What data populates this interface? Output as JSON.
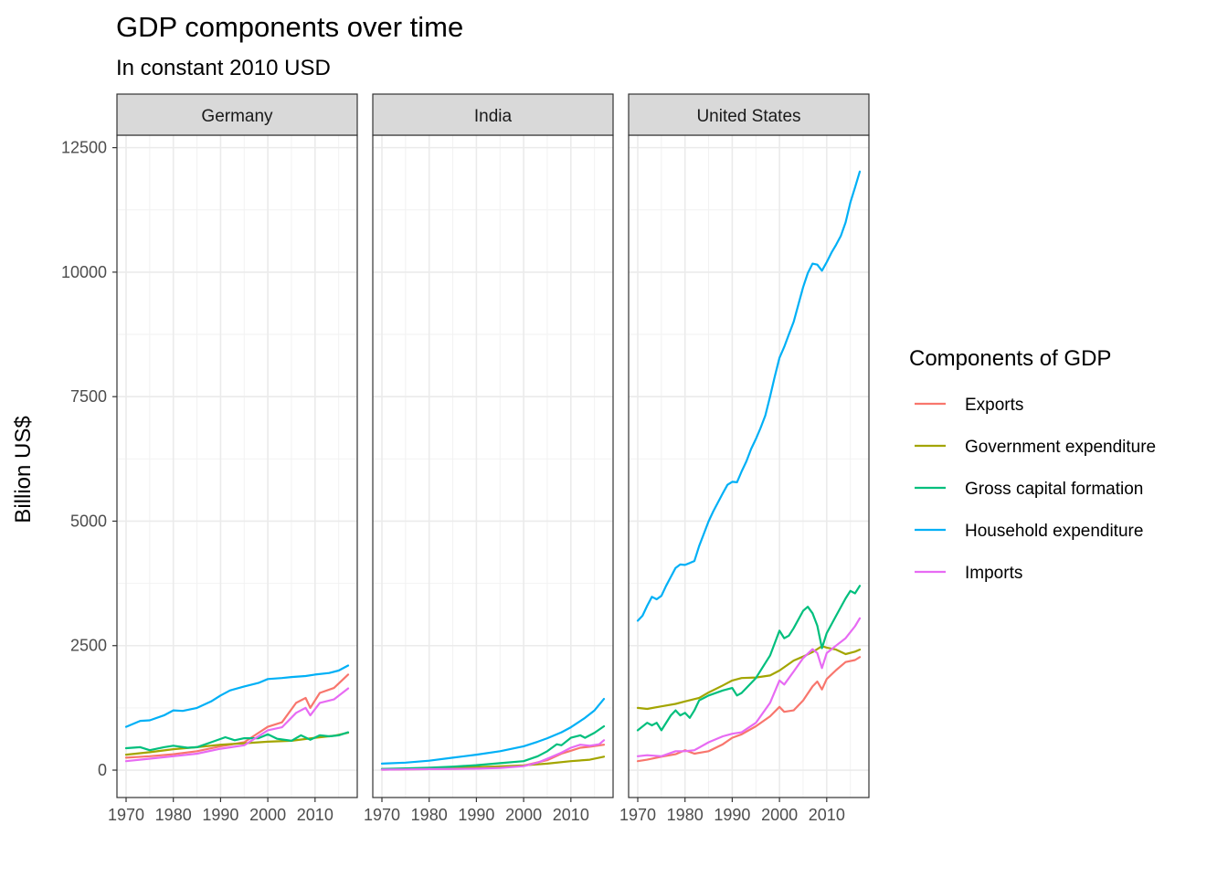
{
  "title": "GDP components over time",
  "subtitle": "In constant 2010 USD",
  "ylabel": "Billion US$",
  "legend_title": "Components of  GDP",
  "colors": {
    "Exports": "#F8766D",
    "Government expenditure": "#A3A500",
    "Gross capital formation": "#00BF7D",
    "Household expenditure": "#00B0F6",
    "Imports": "#E76BF3"
  },
  "chart_data": {
    "type": "line",
    "title": "GDP components over time",
    "subtitle": "In constant 2010 USD",
    "xlabel": "",
    "ylabel": "Billion US$",
    "xlim": [
      1970,
      2017
    ],
    "ylim": [
      -550,
      12750
    ],
    "x_ticks": [
      1970,
      1980,
      1990,
      2000,
      2010
    ],
    "y_ticks": [
      0,
      2500,
      5000,
      7500,
      10000,
      12500
    ],
    "grid": true,
    "legend": "right",
    "series_names": [
      "Exports",
      "Government expenditure",
      "Gross capital formation",
      "Household expenditure",
      "Imports"
    ],
    "panels": [
      {
        "name": "Germany",
        "series": [
          {
            "name": "Exports",
            "x": [
              1970,
              1975,
              1980,
              1985,
              1990,
              1995,
              2000,
              2003,
              2006,
              2008,
              2009,
              2011,
              2014,
              2017
            ],
            "values": [
              250,
              280,
              320,
              380,
              480,
              560,
              870,
              960,
              1350,
              1450,
              1250,
              1550,
              1650,
              1920
            ]
          },
          {
            "name": "Government expenditure",
            "x": [
              1970,
              1975,
              1980,
              1985,
              1990,
              1995,
              2000,
              2005,
              2010,
              2014,
              2017
            ],
            "values": [
              310,
              360,
              420,
              460,
              510,
              540,
              570,
              590,
              650,
              690,
              750
            ]
          },
          {
            "name": "Gross capital formation",
            "x": [
              1970,
              1973,
              1975,
              1978,
              1980,
              1983,
              1985,
              1988,
              1991,
              1993,
              1995,
              1998,
              2000,
              2002,
              2005,
              2007,
              2009,
              2011,
              2013,
              2015,
              2017
            ],
            "values": [
              440,
              460,
              400,
              460,
              490,
              450,
              460,
              560,
              660,
              600,
              640,
              640,
              720,
              630,
              590,
              700,
              610,
              700,
              680,
              700,
              760
            ]
          },
          {
            "name": "Household expenditure",
            "x": [
              1970,
              1973,
              1975,
              1978,
              1980,
              1982,
              1985,
              1988,
              1990,
              1992,
              1995,
              1998,
              2000,
              2003,
              2005,
              2008,
              2010,
              2013,
              2015,
              2017
            ],
            "values": [
              870,
              990,
              1000,
              1100,
              1200,
              1190,
              1250,
              1380,
              1500,
              1600,
              1680,
              1750,
              1830,
              1850,
              1870,
              1890,
              1920,
              1950,
              2000,
              2100
            ]
          },
          {
            "name": "Imports",
            "x": [
              1970,
              1975,
              1980,
              1985,
              1990,
              1995,
              2000,
              2003,
              2006,
              2008,
              2009,
              2011,
              2014,
              2017
            ],
            "values": [
              180,
              230,
              280,
              330,
              430,
              500,
              800,
              860,
              1150,
              1250,
              1100,
              1350,
              1420,
              1640
            ]
          }
        ]
      },
      {
        "name": "India",
        "series": [
          {
            "name": "Exports",
            "x": [
              1970,
              1975,
              1980,
              1985,
              1990,
              1995,
              2000,
              2005,
              2008,
              2010,
              2012,
              2014,
              2017
            ],
            "values": [
              10,
              15,
              20,
              25,
              35,
              55,
              90,
              200,
              330,
              390,
              450,
              470,
              510
            ]
          },
          {
            "name": "Government expenditure",
            "x": [
              1970,
              1975,
              1980,
              1985,
              1990,
              1995,
              2000,
              2005,
              2010,
              2014,
              2017
            ],
            "values": [
              20,
              28,
              35,
              45,
              60,
              75,
              95,
              130,
              180,
              210,
              270
            ]
          },
          {
            "name": "Gross capital formation",
            "x": [
              1970,
              1975,
              1980,
              1985,
              1990,
              1995,
              2000,
              2003,
              2005,
              2007,
              2008,
              2010,
              2012,
              2013,
              2015,
              2017
            ],
            "values": [
              25,
              35,
              50,
              70,
              100,
              140,
              180,
              280,
              380,
              520,
              500,
              650,
              700,
              650,
              750,
              880
            ]
          },
          {
            "name": "Household expenditure",
            "x": [
              1970,
              1975,
              1980,
              1985,
              1990,
              1995,
              2000,
              2003,
              2005,
              2008,
              2010,
              2013,
              2015,
              2017
            ],
            "values": [
              130,
              150,
              190,
              250,
              310,
              380,
              480,
              570,
              640,
              760,
              860,
              1050,
              1200,
              1430
            ]
          },
          {
            "name": "Imports",
            "x": [
              1970,
              1975,
              1980,
              1985,
              1990,
              1995,
              2000,
              2003,
              2005,
              2008,
              2010,
              2012,
              2014,
              2016,
              2017
            ],
            "values": [
              10,
              15,
              20,
              25,
              30,
              45,
              80,
              150,
              230,
              350,
              450,
              510,
              490,
              520,
              600
            ]
          }
        ]
      },
      {
        "name": "United States",
        "series": [
          {
            "name": "Exports",
            "x": [
              1970,
              1972,
              1975,
              1978,
              1980,
              1982,
              1985,
              1988,
              1990,
              1992,
              1995,
              1998,
              2000,
              2001,
              2003,
              2005,
              2007,
              2008,
              2009,
              2010,
              2012,
              2014,
              2016,
              2017
            ],
            "values": [
              180,
              210,
              270,
              320,
              400,
              330,
              380,
              520,
              650,
              720,
              880,
              1080,
              1270,
              1170,
              1200,
              1400,
              1680,
              1780,
              1620,
              1830,
              2010,
              2170,
              2210,
              2270
            ]
          },
          {
            "name": "Government expenditure",
            "x": [
              1970,
              1972,
              1975,
              1978,
              1980,
              1983,
              1985,
              1988,
              1990,
              1992,
              1995,
              1998,
              2000,
              2003,
              2005,
              2007,
              2009,
              2010,
              2012,
              2014,
              2016,
              2017
            ],
            "values": [
              1250,
              1230,
              1280,
              1330,
              1380,
              1450,
              1560,
              1700,
              1800,
              1850,
              1860,
              1900,
              2000,
              2200,
              2280,
              2370,
              2490,
              2460,
              2420,
              2330,
              2380,
              2420
            ]
          },
          {
            "name": "Gross capital formation",
            "x": [
              1970,
              1972,
              1973,
              1974,
              1975,
              1977,
              1978,
              1979,
              1980,
              1981,
              1982,
              1983,
              1984,
              1985,
              1988,
              1990,
              1991,
              1992,
              1995,
              1998,
              2000,
              2001,
              2002,
              2003,
              2005,
              2006,
              2007,
              2008,
              2009,
              2010,
              2012,
              2014,
              2015,
              2016,
              2017
            ],
            "values": [
              800,
              950,
              900,
              950,
              800,
              1100,
              1200,
              1100,
              1150,
              1050,
              1200,
              1400,
              1450,
              1500,
              1600,
              1650,
              1500,
              1550,
              1850,
              2300,
              2800,
              2650,
              2700,
              2850,
              3200,
              3280,
              3150,
              2900,
              2450,
              2750,
              3100,
              3450,
              3600,
              3550,
              3700
            ]
          },
          {
            "name": "Household expenditure",
            "x": [
              1970,
              1971,
              1972,
              1973,
              1974,
              1975,
              1976,
              1977,
              1978,
              1979,
              1980,
              1981,
              1982,
              1983,
              1984,
              1985,
              1986,
              1987,
              1988,
              1989,
              1990,
              1991,
              1992,
              1993,
              1994,
              1995,
              1996,
              1997,
              1998,
              1999,
              2000,
              2001,
              2002,
              2003,
              2004,
              2005,
              2006,
              2007,
              2008,
              2009,
              2010,
              2011,
              2012,
              2013,
              2014,
              2015,
              2016,
              2017
            ],
            "values": [
              3000,
              3100,
              3300,
              3480,
              3430,
              3500,
              3700,
              3880,
              4060,
              4130,
              4120,
              4160,
              4200,
              4500,
              4750,
              5000,
              5200,
              5380,
              5560,
              5730,
              5790,
              5780,
              6000,
              6200,
              6450,
              6650,
              6870,
              7120,
              7500,
              7900,
              8280,
              8500,
              8750,
              9000,
              9350,
              9700,
              9980,
              10170,
              10150,
              10030,
              10200,
              10390,
              10550,
              10730,
              11000,
              11400,
              11700,
              12020
            ]
          },
          {
            "name": "Imports",
            "x": [
              1970,
              1972,
              1975,
              1978,
              1980,
              1982,
              1985,
              1988,
              1990,
              1992,
              1995,
              1998,
              2000,
              2001,
              2003,
              2005,
              2007,
              2008,
              2009,
              2010,
              2012,
              2014,
              2016,
              2017
            ],
            "values": [
              280,
              300,
              280,
              380,
              380,
              400,
              560,
              680,
              730,
              760,
              950,
              1350,
              1800,
              1720,
              1980,
              2250,
              2430,
              2350,
              2050,
              2350,
              2500,
              2650,
              2890,
              3050
            ]
          }
        ]
      }
    ]
  }
}
